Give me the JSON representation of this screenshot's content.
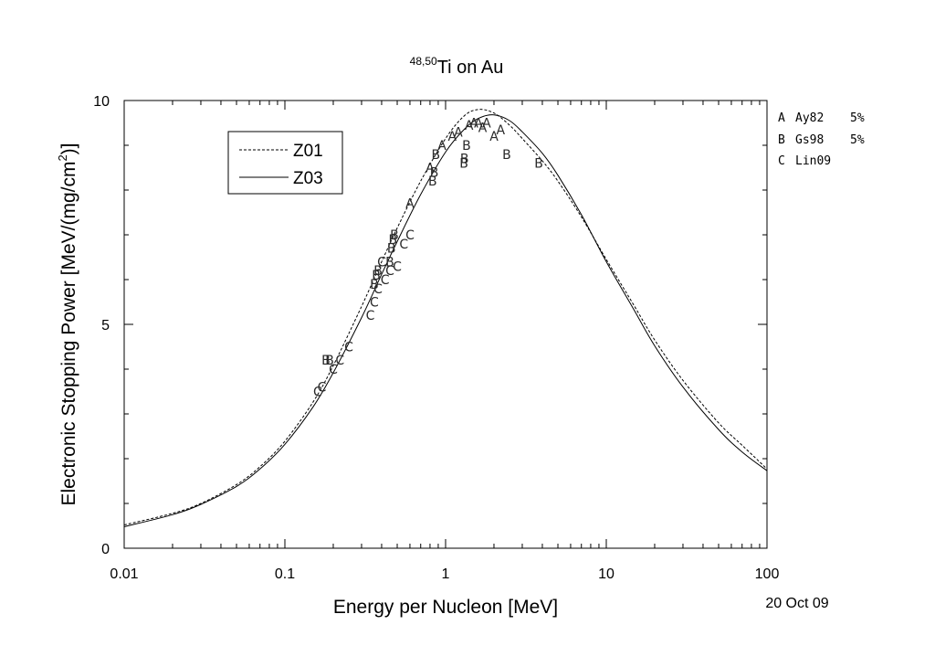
{
  "chart_data": {
    "type": "line",
    "title": {
      "superscript": "48,50",
      "text": "Ti on Au"
    },
    "xlabel": "Energy per Nucleon [MeV]",
    "ylabel": {
      "main": "Electronic Stopping Power [MeV/(mg/cm",
      "sup": "2",
      "end": ")]"
    },
    "x_scale": "log",
    "xlim": [
      0.01,
      100
    ],
    "ylim": [
      0,
      10
    ],
    "x_ticks": [
      {
        "value": 0.01,
        "label": "0.01"
      },
      {
        "value": 0.1,
        "label": "0.1"
      },
      {
        "value": 1,
        "label": "1"
      },
      {
        "value": 10,
        "label": "10"
      },
      {
        "value": 100,
        "label": "100"
      }
    ],
    "y_ticks": [
      {
        "value": 0,
        "label": "0"
      },
      {
        "value": 5,
        "label": "5"
      },
      {
        "value": 10,
        "label": "10"
      }
    ],
    "date_label": "20 Oct 09",
    "legend": {
      "position": "upper-left",
      "entries": [
        {
          "name": "Z01",
          "style": "dashed"
        },
        {
          "name": "Z03",
          "style": "solid"
        }
      ]
    },
    "series": [
      {
        "name": "Z01",
        "style": "dashed",
        "x": [
          0.01,
          0.02,
          0.03,
          0.05,
          0.07,
          0.1,
          0.15,
          0.2,
          0.3,
          0.4,
          0.5,
          0.7,
          1.0,
          1.3,
          1.6,
          2.0,
          2.5,
          3,
          4,
          5,
          7,
          10,
          15,
          20,
          30,
          50,
          70,
          100
        ],
        "y": [
          0.52,
          0.78,
          1.0,
          1.42,
          1.82,
          2.39,
          3.27,
          4.08,
          5.4,
          6.4,
          7.15,
          8.2,
          9.15,
          9.65,
          9.8,
          9.72,
          9.45,
          9.15,
          8.65,
          8.2,
          7.4,
          6.45,
          5.4,
          4.65,
          3.75,
          2.8,
          2.3,
          1.77
        ]
      },
      {
        "name": "Z03",
        "style": "solid",
        "x": [
          0.01,
          0.02,
          0.03,
          0.05,
          0.07,
          0.1,
          0.15,
          0.2,
          0.3,
          0.4,
          0.5,
          0.7,
          1.0,
          1.3,
          1.6,
          2.0,
          2.5,
          3,
          4,
          5,
          7,
          10,
          15,
          20,
          30,
          50,
          70,
          100
        ],
        "y": [
          0.48,
          0.75,
          0.98,
          1.38,
          1.77,
          2.32,
          3.16,
          3.92,
          5.15,
          6.12,
          6.85,
          7.9,
          8.85,
          9.35,
          9.6,
          9.68,
          9.55,
          9.3,
          8.82,
          8.33,
          7.45,
          6.4,
          5.3,
          4.52,
          3.6,
          2.65,
          2.15,
          1.73
        ]
      }
    ],
    "data_legend": [
      {
        "marker": "A",
        "name": "Ay82",
        "error": "5%"
      },
      {
        "marker": "B",
        "name": "Gs98",
        "error": "5%"
      },
      {
        "marker": "C",
        "name": "Lin09",
        "error": ""
      }
    ],
    "data_points": [
      {
        "set": "A",
        "x": 0.6,
        "y": 7.7
      },
      {
        "set": "A",
        "x": 0.8,
        "y": 8.5
      },
      {
        "set": "A",
        "x": 0.95,
        "y": 9.0
      },
      {
        "set": "A",
        "x": 1.1,
        "y": 9.2
      },
      {
        "set": "A",
        "x": 1.2,
        "y": 9.3
      },
      {
        "set": "A",
        "x": 1.4,
        "y": 9.45
      },
      {
        "set": "A",
        "x": 1.5,
        "y": 9.5
      },
      {
        "set": "A",
        "x": 1.6,
        "y": 9.5
      },
      {
        "set": "A",
        "x": 1.7,
        "y": 9.4
      },
      {
        "set": "A",
        "x": 1.8,
        "y": 9.5
      },
      {
        "set": "A",
        "x": 2.0,
        "y": 9.2
      },
      {
        "set": "A",
        "x": 2.2,
        "y": 9.35
      },
      {
        "set": "B",
        "x": 0.18,
        "y": 4.2
      },
      {
        "set": "B",
        "x": 0.19,
        "y": 4.2
      },
      {
        "set": "B",
        "x": 0.36,
        "y": 5.9
      },
      {
        "set": "B",
        "x": 0.37,
        "y": 6.1
      },
      {
        "set": "B",
        "x": 0.38,
        "y": 6.2
      },
      {
        "set": "B",
        "x": 0.45,
        "y": 6.4
      },
      {
        "set": "B",
        "x": 0.46,
        "y": 6.7
      },
      {
        "set": "B",
        "x": 0.47,
        "y": 6.9
      },
      {
        "set": "B",
        "x": 0.48,
        "y": 7.0
      },
      {
        "set": "B",
        "x": 0.83,
        "y": 8.2
      },
      {
        "set": "B",
        "x": 0.85,
        "y": 8.4
      },
      {
        "set": "B",
        "x": 0.87,
        "y": 8.8
      },
      {
        "set": "B",
        "x": 1.3,
        "y": 8.6
      },
      {
        "set": "B",
        "x": 1.31,
        "y": 8.7
      },
      {
        "set": "B",
        "x": 1.35,
        "y": 9.0
      },
      {
        "set": "B",
        "x": 2.4,
        "y": 8.8
      },
      {
        "set": "B",
        "x": 3.8,
        "y": 8.6
      },
      {
        "set": "C",
        "x": 0.16,
        "y": 3.5
      },
      {
        "set": "C",
        "x": 0.17,
        "y": 3.6
      },
      {
        "set": "C",
        "x": 0.2,
        "y": 4.0
      },
      {
        "set": "C",
        "x": 0.22,
        "y": 4.2
      },
      {
        "set": "C",
        "x": 0.25,
        "y": 4.5
      },
      {
        "set": "C",
        "x": 0.34,
        "y": 5.2
      },
      {
        "set": "C",
        "x": 0.36,
        "y": 5.5
      },
      {
        "set": "C",
        "x": 0.38,
        "y": 5.8
      },
      {
        "set": "C",
        "x": 0.42,
        "y": 6.0
      },
      {
        "set": "C",
        "x": 0.45,
        "y": 6.2
      },
      {
        "set": "C",
        "x": 0.5,
        "y": 6.3
      },
      {
        "set": "C",
        "x": 0.55,
        "y": 6.8
      },
      {
        "set": "C",
        "x": 0.6,
        "y": 7.0
      },
      {
        "set": "C",
        "x": 0.4,
        "y": 6.4
      }
    ]
  }
}
